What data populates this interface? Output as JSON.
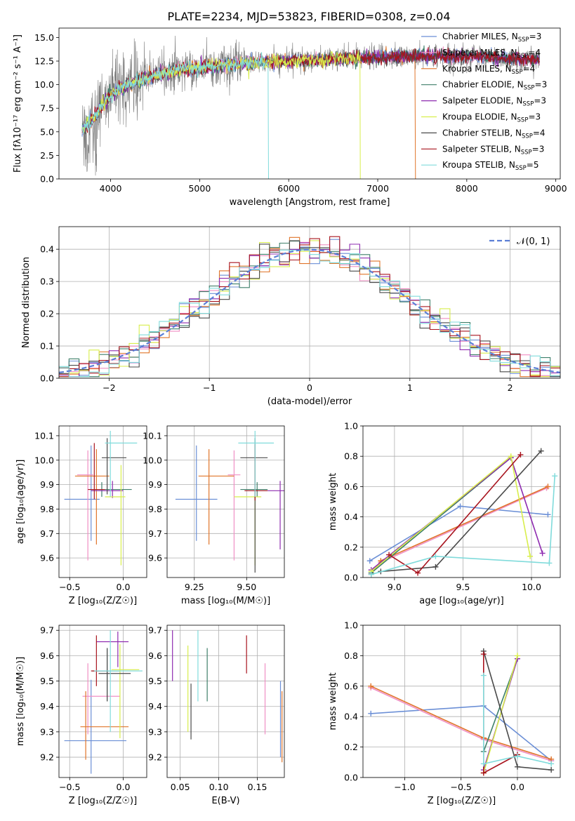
{
  "title": "PLATE=2234, MJD=53823, FIBERID=0308, z=0.04",
  "colors": {
    "series": [
      "#6b8fd6",
      "#f08fc4",
      "#e0752a",
      "#3f7f6a",
      "#8e2bb0",
      "#d8ee4c",
      "#4a4a4a",
      "#a8141e",
      "#80dbdb"
    ],
    "observed": "#7a7a7a",
    "normal": "#5b7fd6"
  },
  "chart_data": [
    {
      "id": "spectrum",
      "type": "line",
      "xlabel": "wavelength [Angstrom, rest frame]",
      "ylabel": "Flux [fλ10⁻¹⁷ erg cm⁻² s⁻¹ A⁻¹]",
      "xlim": [
        3420,
        9050
      ],
      "ylim": [
        0,
        16
      ],
      "xticks": [
        4000,
        5000,
        6000,
        7000,
        8000,
        9000
      ],
      "yticks": [
        0.0,
        2.5,
        5.0,
        7.5,
        10.0,
        12.5,
        15.0
      ],
      "grid": false,
      "legend_position": "upper right",
      "legend": [
        "Chabrier MILES, N_SSP=3",
        "Salpeter MILES, N_SSP=4",
        "Kroupa MILES, N_SSP=4",
        "Chabrier ELODIE, N_SSP=3",
        "Salpeter ELODIE, N_SSP=3",
        "Kroupa ELODIE, N_SSP=3",
        "Chabrier STELIB, N_SSP=4",
        "Salpeter STELIB, N_SSP=3",
        "Kroupa STELIB, N_SSP=5"
      ],
      "continuum_shape": [
        [
          3680,
          5.2
        ],
        [
          3800,
          6.4
        ],
        [
          3950,
          8.4
        ],
        [
          4100,
          9.6
        ],
        [
          4300,
          10.4
        ],
        [
          4500,
          11.0
        ],
        [
          4800,
          11.6
        ],
        [
          5200,
          12.0
        ],
        [
          5600,
          12.3
        ],
        [
          6000,
          12.5
        ],
        [
          6500,
          12.7
        ],
        [
          7000,
          12.9
        ],
        [
          7500,
          13.0
        ],
        [
          8000,
          13.0
        ],
        [
          8400,
          12.8
        ],
        [
          8800,
          12.6
        ]
      ],
      "model_dropouts": [
        {
          "series": 8,
          "x": 5770
        },
        {
          "series": 5,
          "x": 6800
        },
        {
          "series": 2,
          "x": 7420
        }
      ]
    },
    {
      "id": "residual-histogram",
      "type": "histogram",
      "xlabel": "(data-model)/error",
      "ylabel": "Normed distribution",
      "xlim": [
        -2.5,
        2.5
      ],
      "ylim": [
        0,
        0.47
      ],
      "xticks": [
        -2,
        -1,
        0,
        1,
        2
      ],
      "yticks": [
        0.0,
        0.1,
        0.2,
        0.3,
        0.4
      ],
      "bin_width": 0.1,
      "grid": true,
      "legend": [
        "𝒩(0, 1)"
      ],
      "legend_position": "upper right"
    },
    {
      "id": "age-vs-z",
      "type": "errorbar",
      "xlabel": "Z [log₁₀(Z/Z☉)]",
      "ylabel": "age  [log₁₀(age/yr)]",
      "xlim": [
        -0.6,
        0.22
      ],
      "ylim": [
        9.52,
        10.14
      ],
      "xticks": [
        -0.5,
        0.0
      ],
      "yticks": [
        9.6,
        9.7,
        9.8,
        9.9,
        10.0,
        10.1
      ],
      "grid": true,
      "points": [
        {
          "x": -0.3,
          "xerr": [
            0.25,
            0.08
          ],
          "y": 9.84,
          "yerr": [
            0.17,
            0.22
          ]
        },
        {
          "x": -0.33,
          "xerr": [
            0.1,
            0.05
          ],
          "y": 9.94,
          "yerr": [
            0.35,
            0.1
          ]
        },
        {
          "x": -0.25,
          "xerr": [
            0.2,
            0.12
          ],
          "y": 9.935,
          "yerr": [
            0.28,
            0.11
          ]
        },
        {
          "x": -0.2,
          "xerr": [
            0.12,
            0.28
          ],
          "y": 9.88,
          "yerr": [
            0.03,
            0.03
          ]
        },
        {
          "x": -0.1,
          "xerr": [
            0.2,
            0.1
          ],
          "y": 9.875,
          "yerr": [
            0.03,
            0.04
          ]
        },
        {
          "x": -0.02,
          "xerr": [
            0.15,
            0.04
          ],
          "y": 9.85,
          "yerr": [
            0.28,
            0.13
          ]
        },
        {
          "x": -0.15,
          "xerr": [
            0.05,
            0.18
          ],
          "y": 10.01,
          "yerr": [
            0.15,
            0.08
          ]
        },
        {
          "x": -0.27,
          "xerr": [
            0.06,
            0.1
          ],
          "y": 9.88,
          "yerr": [
            0.04,
            0.19
          ]
        },
        {
          "x": -0.12,
          "xerr": [
            0.05,
            0.25
          ],
          "y": 10.07,
          "yerr": [
            0.22,
            0.05
          ]
        }
      ]
    },
    {
      "id": "age-vs-mass",
      "type": "errorbar",
      "xlabel": "mass [log₁₀(M/M☉)]",
      "ylabel": "",
      "xlim": [
        9.12,
        9.68
      ],
      "ylim": [
        9.52,
        10.14
      ],
      "xticks": [
        9.25,
        9.5
      ],
      "yticks": [
        9.6,
        9.7,
        9.8,
        9.9,
        10.0,
        10.1
      ],
      "grid": true,
      "points": [
        {
          "x": 9.26,
          "xerr": [
            0.1,
            0.1
          ],
          "y": 9.84,
          "yerr": [
            0.17,
            0.22
          ]
        },
        {
          "x": 9.44,
          "xerr": [
            0.03,
            0.03
          ],
          "y": 9.94,
          "yerr": [
            0.35,
            0.1
          ]
        },
        {
          "x": 9.32,
          "xerr": [
            0.05,
            0.12
          ],
          "y": 9.935,
          "yerr": [
            0.28,
            0.11
          ]
        },
        {
          "x": 9.55,
          "xerr": [
            0.08,
            0.05
          ],
          "y": 9.88,
          "yerr": [
            0.03,
            0.03
          ]
        },
        {
          "x": 9.66,
          "xerr": [
            0.06,
            0.03
          ],
          "y": 9.875,
          "yerr": [
            0.24,
            0.04
          ]
        },
        {
          "x": 9.54,
          "xerr": [
            0.1,
            0.03
          ],
          "y": 9.85,
          "yerr": [
            0.28,
            0.13
          ]
        },
        {
          "x": 9.54,
          "xerr": [
            0.07,
            0.06
          ],
          "y": 10.01,
          "yerr": [
            0.47,
            0.08
          ]
        },
        {
          "x": 9.54,
          "xerr": [
            0.05,
            0.06
          ],
          "y": 9.875,
          "yerr": [
            0.04,
            0.19
          ]
        },
        {
          "x": 9.54,
          "xerr": [
            0.08,
            0.09
          ],
          "y": 10.07,
          "yerr": [
            0.22,
            0.05
          ]
        }
      ]
    },
    {
      "id": "mass-weight-vs-age",
      "type": "line",
      "xlabel": "age  [log₁₀(age/yr)]",
      "ylabel": "mass weight",
      "xlim": [
        8.77,
        10.21
      ],
      "ylim": [
        0,
        1
      ],
      "xticks": [
        9.0,
        9.5,
        10.0
      ],
      "yticks": [
        0.0,
        0.2,
        0.4,
        0.6,
        0.8,
        1.0
      ],
      "grid": true,
      "series": [
        {
          "points": [
            [
              8.82,
              0.11
            ],
            [
              9.48,
              0.47
            ],
            [
              10.12,
              0.415
            ]
          ]
        },
        {
          "points": [
            [
              8.83,
              0.03
            ],
            [
              8.9,
              0.1
            ],
            [
              10.11,
              0.59
            ]
          ]
        },
        {
          "points": [
            [
              8.83,
              0.02
            ],
            [
              8.9,
              0.11
            ],
            [
              10.12,
              0.6
            ]
          ]
        },
        {
          "points": [
            [
              8.83,
              0.03
            ],
            [
              9.85,
              0.79
            ]
          ]
        },
        {
          "points": [
            [
              8.83,
              0.05
            ],
            [
              9.85,
              0.79
            ],
            [
              10.08,
              0.16
            ]
          ]
        },
        {
          "points": [
            [
              8.83,
              0.04
            ],
            [
              9.85,
              0.8
            ],
            [
              9.99,
              0.14
            ]
          ]
        },
        {
          "points": [
            [
              8.9,
              0.04
            ],
            [
              9.3,
              0.07
            ],
            [
              10.07,
              0.835
            ]
          ]
        },
        {
          "points": [
            [
              8.96,
              0.15
            ],
            [
              9.17,
              0.03
            ],
            [
              9.92,
              0.81
            ]
          ]
        },
        {
          "points": [
            [
              8.83,
              0.02
            ],
            [
              9.3,
              0.14
            ],
            [
              10.13,
              0.095
            ],
            [
              10.17,
              0.67
            ]
          ]
        }
      ]
    },
    {
      "id": "mass-vs-z",
      "type": "errorbar",
      "xlabel": "Z [log₁₀(Z/Z☉)]",
      "ylabel": "mass [log₁₀(M/M☉)]",
      "xlim": [
        -0.6,
        0.22
      ],
      "ylim": [
        9.12,
        9.72
      ],
      "xticks": [
        -0.5,
        0.0
      ],
      "yticks": [
        9.2,
        9.3,
        9.4,
        9.5,
        9.6,
        9.7
      ],
      "grid": true,
      "points": [
        {
          "x": -0.3,
          "xerr": [
            0.25,
            0.33
          ],
          "y": 9.265,
          "yerr": [
            0.13,
            0.24
          ]
        },
        {
          "x": -0.33,
          "xerr": [
            0.05,
            0.3
          ],
          "y": 9.44,
          "yerr": [
            0.15,
            0.13
          ]
        },
        {
          "x": -0.35,
          "xerr": [
            0.05,
            0.4
          ],
          "y": 9.32,
          "yerr": [
            0.13,
            0.14
          ]
        },
        {
          "x": -0.15,
          "xerr": [
            0.14,
            0.12
          ],
          "y": 9.54,
          "yerr": [
            0.12,
            0.09
          ]
        },
        {
          "x": -0.05,
          "xerr": [
            0.2,
            0.1
          ],
          "y": 9.655,
          "yerr": [
            0.1,
            0.04
          ]
        },
        {
          "x": -0.03,
          "xerr": [
            0.08,
            0.18
          ],
          "y": 9.545,
          "yerr": [
            0.27,
            0.1
          ]
        },
        {
          "x": -0.15,
          "xerr": [
            0.08,
            0.22
          ],
          "y": 9.53,
          "yerr": [
            0.11,
            0.1
          ]
        },
        {
          "x": -0.25,
          "xerr": [
            0.05,
            0.1
          ],
          "y": 9.54,
          "yerr": [
            0.06,
            0.14
          ]
        },
        {
          "x": -0.12,
          "xerr": [
            0.15,
            0.3
          ],
          "y": 9.54,
          "yerr": [
            0.24,
            0.16
          ]
        }
      ]
    },
    {
      "id": "mass-vs-ebv",
      "type": "errorbar",
      "xlabel": "E(B-V)",
      "ylabel": "",
      "xlim": [
        0.033,
        0.185
      ],
      "ylim": [
        9.12,
        9.72
      ],
      "xticks": [
        0.05,
        0.1,
        0.15
      ],
      "yticks": [
        9.2,
        9.3,
        9.4,
        9.5,
        9.6,
        9.7
      ],
      "grid": true,
      "points": [
        {
          "x": 0.18,
          "y": 9.35,
          "yerr": [
            0.15,
            0.15
          ]
        },
        {
          "x": 0.16,
          "y": 9.43,
          "yerr": [
            0.14,
            0.14
          ]
        },
        {
          "x": 0.182,
          "y": 9.32,
          "yerr": [
            0.14,
            0.14
          ]
        },
        {
          "x": 0.085,
          "y": 9.52,
          "yerr": [
            0.1,
            0.11
          ]
        },
        {
          "x": 0.04,
          "y": 9.6,
          "yerr": [
            0.1,
            0.1
          ]
        },
        {
          "x": 0.06,
          "y": 9.47,
          "yerr": [
            0.17,
            0.17
          ]
        },
        {
          "x": 0.064,
          "y": 9.38,
          "yerr": [
            0.11,
            0.11
          ]
        },
        {
          "x": 0.136,
          "y": 9.61,
          "yerr": [
            0.08,
            0.07
          ]
        },
        {
          "x": 0.073,
          "y": 9.57,
          "yerr": [
            0.15,
            0.13
          ]
        }
      ]
    },
    {
      "id": "mass-weight-vs-z",
      "type": "line",
      "xlabel": "Z [log₁₀(Z/Z☉)]",
      "ylabel": "mass weight",
      "xlim": [
        -1.37,
        0.38
      ],
      "ylim": [
        0,
        1
      ],
      "xticks": [
        -1.0,
        -0.5,
        0.0
      ],
      "yticks": [
        0.0,
        0.2,
        0.4,
        0.6,
        0.8,
        1.0
      ],
      "grid": true,
      "series": [
        {
          "points": [
            [
              -1.3,
              0.42
            ],
            [
              -0.3,
              0.47
            ],
            [
              0.3,
              0.11
            ]
          ]
        },
        {
          "points": [
            [
              -1.3,
              0.59
            ],
            [
              -0.3,
              0.25
            ],
            [
              0.3,
              0.11
            ]
          ]
        },
        {
          "points": [
            [
              -1.3,
              0.6
            ],
            [
              -0.3,
              0.26
            ],
            [
              0.3,
              0.12
            ]
          ]
        },
        {
          "points": [
            [
              -0.3,
              0.17
            ],
            [
              0.0,
              0.78
            ]
          ]
        },
        {
          "points": [
            [
              -0.3,
              0.05
            ],
            [
              0.0,
              0.78
            ]
          ]
        },
        {
          "points": [
            [
              -0.3,
              0.03
            ],
            [
              0.0,
              0.8
            ]
          ]
        },
        {
          "points": [
            [
              -0.3,
              0.83
            ],
            [
              0.0,
              0.07
            ],
            [
              0.3,
              0.05
            ]
          ]
        },
        {
          "points": [
            [
              -0.3,
              0.81
            ],
            [
              -0.3,
              0.03
            ],
            [
              0.0,
              0.15
            ]
          ]
        },
        {
          "points": [
            [
              -0.3,
              0.67
            ],
            [
              -0.3,
              0.09
            ],
            [
              0.0,
              0.14
            ],
            [
              0.3,
              0.09
            ]
          ]
        }
      ]
    }
  ]
}
